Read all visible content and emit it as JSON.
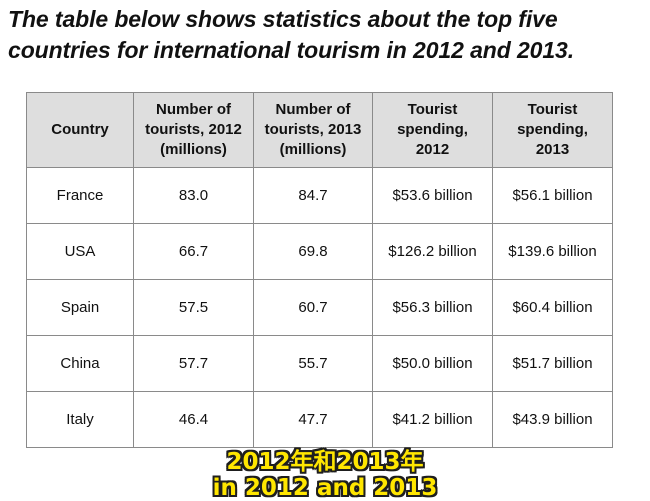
{
  "title": "The table below shows statistics about the top five countries for international tourism in 2012 and 2013.",
  "table": {
    "headers": [
      {
        "lines": [
          "Country"
        ]
      },
      {
        "lines": [
          "Number of",
          "tourists, 2012",
          "(millions)"
        ]
      },
      {
        "lines": [
          "Number of",
          "tourists, 2013",
          "(millions)"
        ]
      },
      {
        "lines": [
          "Tourist",
          "spending,",
          "2012"
        ]
      },
      {
        "lines": [
          "Tourist",
          "spending,",
          "2013"
        ]
      }
    ],
    "rows": [
      [
        "France",
        "83.0",
        "84.7",
        "$53.6 billion",
        "$56.1 billion"
      ],
      [
        "USA",
        "66.7",
        "69.8",
        "$126.2 billion",
        "$139.6 billion"
      ],
      [
        "Spain",
        "57.5",
        "60.7",
        "$56.3 billion",
        "$60.4 billion"
      ],
      [
        "China",
        "57.7",
        "55.7",
        "$50.0 billion",
        "$51.7 billion"
      ],
      [
        "Italy",
        "46.4",
        "47.7",
        "$41.2 billion",
        "$43.9 billion"
      ]
    ]
  },
  "subtitles": {
    "chinese": "2012年和2013年",
    "english": "in 2012 and 2013"
  },
  "colors": {
    "header_background": "#dedede",
    "subtitle_text": "#ffe600",
    "subtitle_outline": "#1e1e1e"
  }
}
